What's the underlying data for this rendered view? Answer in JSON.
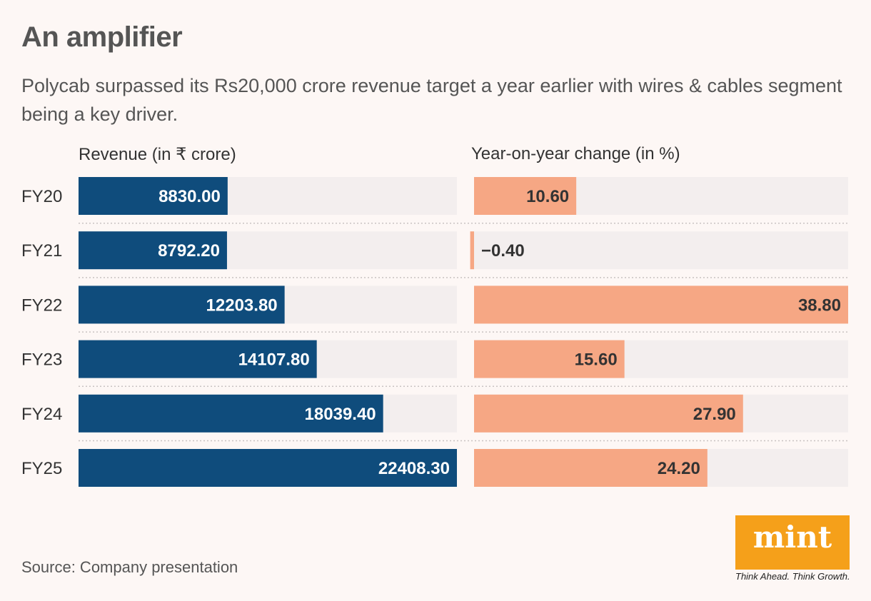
{
  "title": "An amplifier",
  "subtitle": "Polycab surpassed its Rs20,000 crore revenue target a year earlier with wires & cables segment being a key driver.",
  "source": "Source: Company presentation",
  "brand": {
    "name": "mint",
    "tagline": "Think Ahead. Think Growth.",
    "color": "#f5a01a"
  },
  "colors": {
    "revenue_bar": "#0f4c7c",
    "yoy_bar": "#f6a784",
    "track": "#f3eeee",
    "background": "#fdf7f5"
  },
  "chart_data": [
    {
      "type": "bar",
      "orientation": "horizontal",
      "title": "Revenue (in ₹ crore)",
      "categories": [
        "FY20",
        "FY21",
        "FY22",
        "FY23",
        "FY24",
        "FY25"
      ],
      "values": [
        8830.0,
        8792.2,
        12203.8,
        14107.8,
        18039.4,
        22408.3
      ],
      "labels": [
        "8830.00",
        "8792.20",
        "12203.80",
        "14107.80",
        "18039.40",
        "22408.30"
      ],
      "xlim": [
        0,
        22408.3
      ]
    },
    {
      "type": "bar",
      "orientation": "horizontal",
      "title": "Year-on-year change (in %)",
      "categories": [
        "FY20",
        "FY21",
        "FY22",
        "FY23",
        "FY24",
        "FY25"
      ],
      "values": [
        10.6,
        -0.4,
        38.8,
        15.6,
        27.9,
        24.2
      ],
      "labels": [
        "10.60",
        "−0.40",
        "38.80",
        "15.60",
        "27.90",
        "24.20"
      ],
      "xlim": [
        0,
        38.8
      ]
    }
  ]
}
